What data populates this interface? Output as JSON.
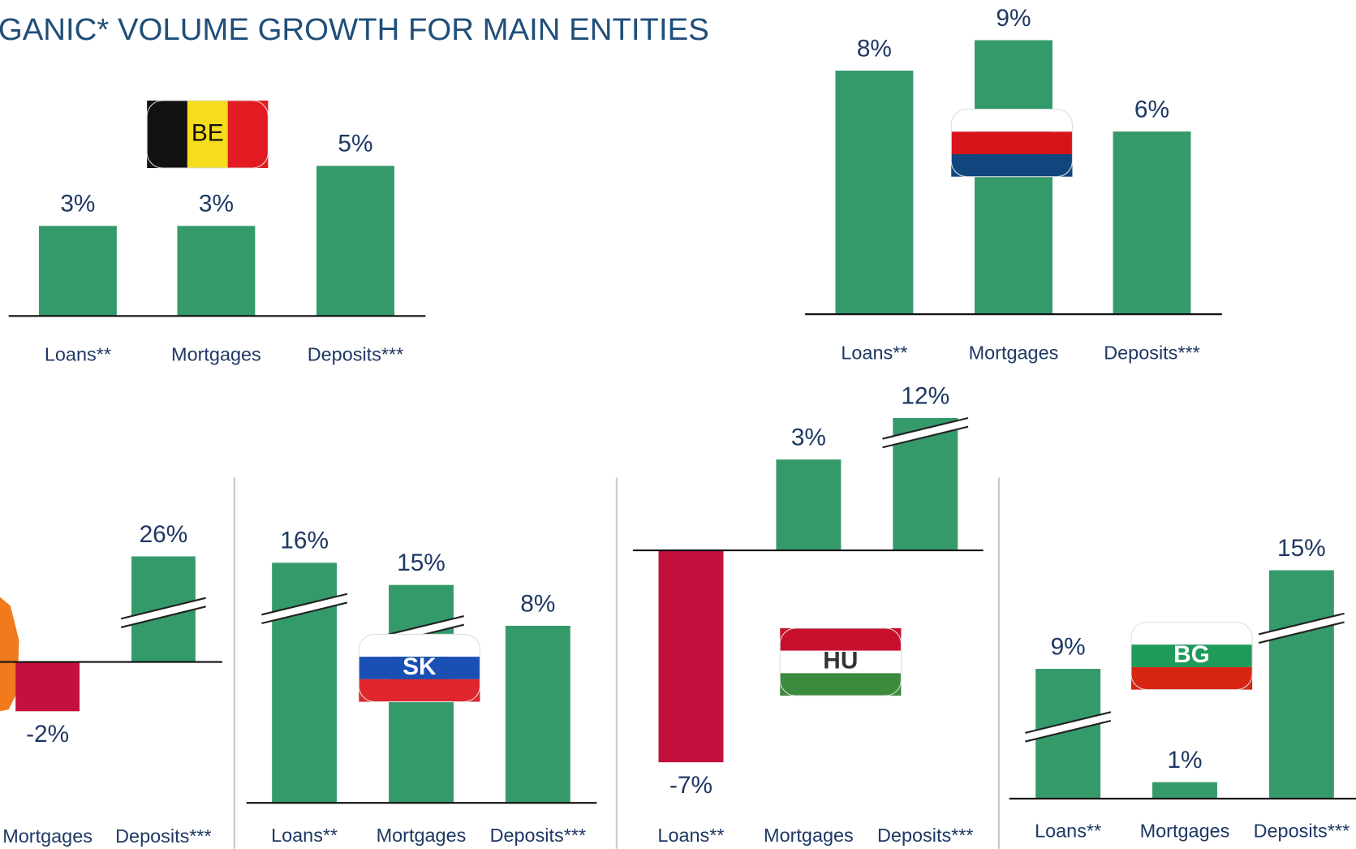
{
  "title": "GANIC* VOLUME GROWTH FOR MAIN ENTITIES",
  "chart_data": [
    {
      "type": "bar",
      "annotation": "BE",
      "categories": [
        "Loans**",
        "Mortgages",
        "Deposits***"
      ],
      "values": [
        3,
        3,
        5
      ],
      "value_labels": [
        "3%",
        "3%",
        "5%"
      ],
      "color": "#359a6a",
      "negative_color": "#c3103c",
      "broken": [
        false,
        false,
        false
      ]
    },
    {
      "type": "bar",
      "categories": [
        "Loans**",
        "Mortgages",
        "Deposits***"
      ],
      "values": [
        8,
        9,
        6
      ],
      "value_labels": [
        "8%",
        "9%",
        "6%"
      ],
      "color": "#359a6a",
      "negative_color": "#c3103c",
      "broken": [
        false,
        false,
        false
      ]
    },
    {
      "type": "bar",
      "categories": [
        "Mortgages",
        "Deposits***"
      ],
      "values": [
        -2,
        26
      ],
      "value_labels": [
        "-2%",
        "26%"
      ],
      "color": "#359a6a",
      "negative_color": "#c3103c",
      "broken": [
        false,
        true
      ]
    },
    {
      "type": "bar",
      "annotation": "SK",
      "categories": [
        "Loans**",
        "Mortgages",
        "Deposits***"
      ],
      "values": [
        16,
        15,
        8
      ],
      "value_labels": [
        "16%",
        "15%",
        "8%"
      ],
      "color": "#359a6a",
      "negative_color": "#c3103c",
      "broken": [
        true,
        true,
        false
      ]
    },
    {
      "type": "bar",
      "annotation": "HU",
      "categories": [
        "Loans**",
        "Mortgages",
        "Deposits***"
      ],
      "values": [
        -7,
        3,
        12
      ],
      "value_labels": [
        "-7%",
        "3%",
        "12%"
      ],
      "color": "#359a6a",
      "negative_color": "#c3103c",
      "broken": [
        false,
        false,
        true
      ]
    },
    {
      "type": "bar",
      "annotation": "BG",
      "categories": [
        "Loans**",
        "Mortgages",
        "Deposits***"
      ],
      "values": [
        9,
        1,
        15
      ],
      "value_labels": [
        "9%",
        "1%",
        "15%"
      ],
      "color": "#359a6a",
      "negative_color": "#c3103c",
      "broken": [
        true,
        false,
        true
      ]
    }
  ]
}
